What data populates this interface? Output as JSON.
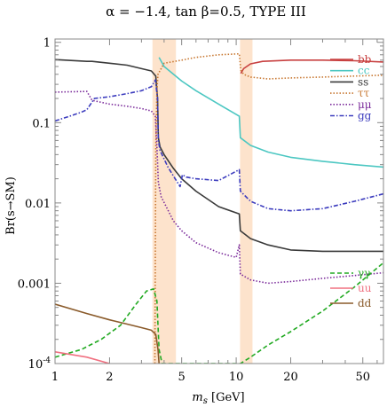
{
  "chart_data": {
    "type": "line",
    "title": "α = −1.4, tan β=0.5, TYPE III",
    "xlabel": "m_s [GeV]",
    "ylabel": "Br(s→SM)",
    "x_scale": "log",
    "y_scale": "log",
    "xlim": [
      1,
      65
    ],
    "ylim": [
      0.0001,
      1.1
    ],
    "x_ticks": [
      1,
      2,
      5,
      10,
      20,
      50
    ],
    "x_tick_labels": [
      "1",
      "2",
      "5",
      "10",
      "20",
      "50"
    ],
    "y_ticks": [
      0.0001,
      0.001,
      0.01,
      0.1,
      1
    ],
    "y_tick_labels": [
      "10^-4",
      "0.001",
      "0.01",
      "0.1",
      "1"
    ],
    "shaded_bands": [
      {
        "x": [
          3.45,
          4.65
        ],
        "color": "#fde3cc"
      },
      {
        "x": [
          10.5,
          12.3
        ],
        "color": "#fde3cc"
      }
    ],
    "legend_position": "right",
    "series": [
      {
        "name": "bb",
        "color": "#c84040",
        "dash": "solid",
        "points": [
          [
            10.6,
            0.41
          ],
          [
            11,
            0.47
          ],
          [
            12,
            0.54
          ],
          [
            14,
            0.58
          ],
          [
            20,
            0.6
          ],
          [
            30,
            0.6
          ],
          [
            45,
            0.59
          ],
          [
            65,
            0.57
          ]
        ]
      },
      {
        "name": "cc",
        "color": "#4cc7c2",
        "dash": "solid",
        "points": [
          [
            3.75,
            0.65
          ],
          [
            4,
            0.5
          ],
          [
            5,
            0.33
          ],
          [
            6,
            0.25
          ],
          [
            8,
            0.17
          ],
          [
            10.4,
            0.12
          ],
          [
            10.55,
            0.065
          ],
          [
            12,
            0.052
          ],
          [
            15,
            0.043
          ],
          [
            20,
            0.037
          ],
          [
            30,
            0.033
          ],
          [
            45,
            0.03
          ],
          [
            65,
            0.028
          ]
        ]
      },
      {
        "name": "ss",
        "color": "#3a3a3a",
        "dash": "solid",
        "points": [
          [
            1,
            0.61
          ],
          [
            1.5,
            0.58
          ],
          [
            1.6,
            0.58
          ],
          [
            2,
            0.55
          ],
          [
            2.5,
            0.52
          ],
          [
            3,
            0.47
          ],
          [
            3.4,
            0.44
          ],
          [
            3.6,
            0.38
          ],
          [
            3.68,
            0.2
          ],
          [
            3.72,
            0.065
          ],
          [
            3.8,
            0.05
          ],
          [
            4,
            0.04
          ],
          [
            4.5,
            0.027
          ],
          [
            5,
            0.02
          ],
          [
            6,
            0.014
          ],
          [
            8,
            0.009
          ],
          [
            10.4,
            0.0073
          ],
          [
            10.55,
            0.0045
          ],
          [
            12,
            0.0036
          ],
          [
            15,
            0.003
          ],
          [
            20,
            0.0026
          ],
          [
            30,
            0.0025
          ],
          [
            45,
            0.0025
          ],
          [
            65,
            0.0025
          ]
        ]
      },
      {
        "name": "ττ",
        "color": "#c87832",
        "dash": "dotted",
        "points": [
          [
            3.56,
            0.0001
          ],
          [
            3.6,
            0.05
          ],
          [
            3.65,
            0.25
          ],
          [
            3.7,
            0.4
          ],
          [
            4,
            0.55
          ],
          [
            5,
            0.6
          ],
          [
            6,
            0.65
          ],
          [
            8,
            0.7
          ],
          [
            10.4,
            0.72
          ],
          [
            10.6,
            0.45
          ],
          [
            11,
            0.4
          ],
          [
            12,
            0.37
          ],
          [
            15,
            0.35
          ],
          [
            20,
            0.36
          ],
          [
            30,
            0.37
          ],
          [
            45,
            0.38
          ],
          [
            65,
            0.39
          ]
        ]
      },
      {
        "name": "μμ",
        "color": "#7a2a9a",
        "dash": "dotted",
        "points": [
          [
            1,
            0.24
          ],
          [
            1.5,
            0.245
          ],
          [
            1.6,
            0.19
          ],
          [
            2,
            0.17
          ],
          [
            2.5,
            0.16
          ],
          [
            3,
            0.15
          ],
          [
            3.4,
            0.14
          ],
          [
            3.58,
            0.12
          ],
          [
            3.65,
            0.05
          ],
          [
            3.72,
            0.018
          ],
          [
            3.85,
            0.012
          ],
          [
            4.5,
            0.006
          ],
          [
            5,
            0.0045
          ],
          [
            6,
            0.0032
          ],
          [
            8,
            0.0024
          ],
          [
            10,
            0.0021
          ],
          [
            10.4,
            0.003
          ],
          [
            10.55,
            0.0013
          ],
          [
            12,
            0.0011
          ],
          [
            15,
            0.001
          ],
          [
            20,
            0.00105
          ],
          [
            30,
            0.00115
          ],
          [
            45,
            0.00125
          ],
          [
            65,
            0.00135
          ]
        ]
      },
      {
        "name": "gg",
        "color": "#3c3cbe",
        "dash": "dashdot",
        "points": [
          [
            1,
            0.105
          ],
          [
            1.2,
            0.12
          ],
          [
            1.4,
            0.135
          ],
          [
            1.5,
            0.145
          ],
          [
            1.65,
            0.2
          ],
          [
            2,
            0.21
          ],
          [
            2.5,
            0.23
          ],
          [
            3,
            0.25
          ],
          [
            3.4,
            0.28
          ],
          [
            3.58,
            0.34
          ],
          [
            3.68,
            0.2
          ],
          [
            3.72,
            0.06
          ],
          [
            3.8,
            0.045
          ],
          [
            4.2,
            0.028
          ],
          [
            4.6,
            0.02
          ],
          [
            4.9,
            0.016
          ],
          [
            5.05,
            0.0225
          ],
          [
            5.3,
            0.021
          ],
          [
            6,
            0.02
          ],
          [
            8,
            0.019
          ],
          [
            10.4,
            0.026
          ],
          [
            10.55,
            0.014
          ],
          [
            12,
            0.0105
          ],
          [
            15,
            0.0085
          ],
          [
            20,
            0.008
          ],
          [
            30,
            0.0085
          ],
          [
            45,
            0.0105
          ],
          [
            65,
            0.013
          ]
        ]
      },
      {
        "name": "γγ",
        "color": "#22aa22",
        "dash": "dashed",
        "points": [
          [
            1,
            0.00012
          ],
          [
            1.4,
            0.00015
          ],
          [
            1.8,
            0.0002
          ],
          [
            2.3,
            0.0003
          ],
          [
            2.8,
            0.00055
          ],
          [
            3.2,
            0.0008
          ],
          [
            3.5,
            0.00085
          ],
          [
            3.65,
            0.0006
          ],
          [
            3.75,
            0.00015
          ],
          [
            3.9,
            0.0001
          ],
          [
            10.55,
            0.0001
          ],
          [
            12,
            0.00012
          ],
          [
            15,
            0.00017
          ],
          [
            20,
            0.00025
          ],
          [
            30,
            0.00045
          ],
          [
            45,
            0.0009
          ],
          [
            65,
            0.0018
          ]
        ]
      },
      {
        "name": "uu",
        "color": "#f07080",
        "dash": "solid",
        "points": [
          [
            1,
            0.00014
          ],
          [
            1.5,
            0.00012
          ],
          [
            2,
            0.0001
          ]
        ]
      },
      {
        "name": "dd",
        "color": "#8a5a2a",
        "dash": "solid",
        "points": [
          [
            1,
            0.00055
          ],
          [
            1.5,
            0.00042
          ],
          [
            2,
            0.00035
          ],
          [
            2.5,
            0.00031
          ],
          [
            3,
            0.00028
          ],
          [
            3.4,
            0.00026
          ],
          [
            3.6,
            0.00023
          ],
          [
            3.7,
            0.00015
          ],
          [
            3.75,
            0.0001
          ]
        ]
      }
    ]
  }
}
